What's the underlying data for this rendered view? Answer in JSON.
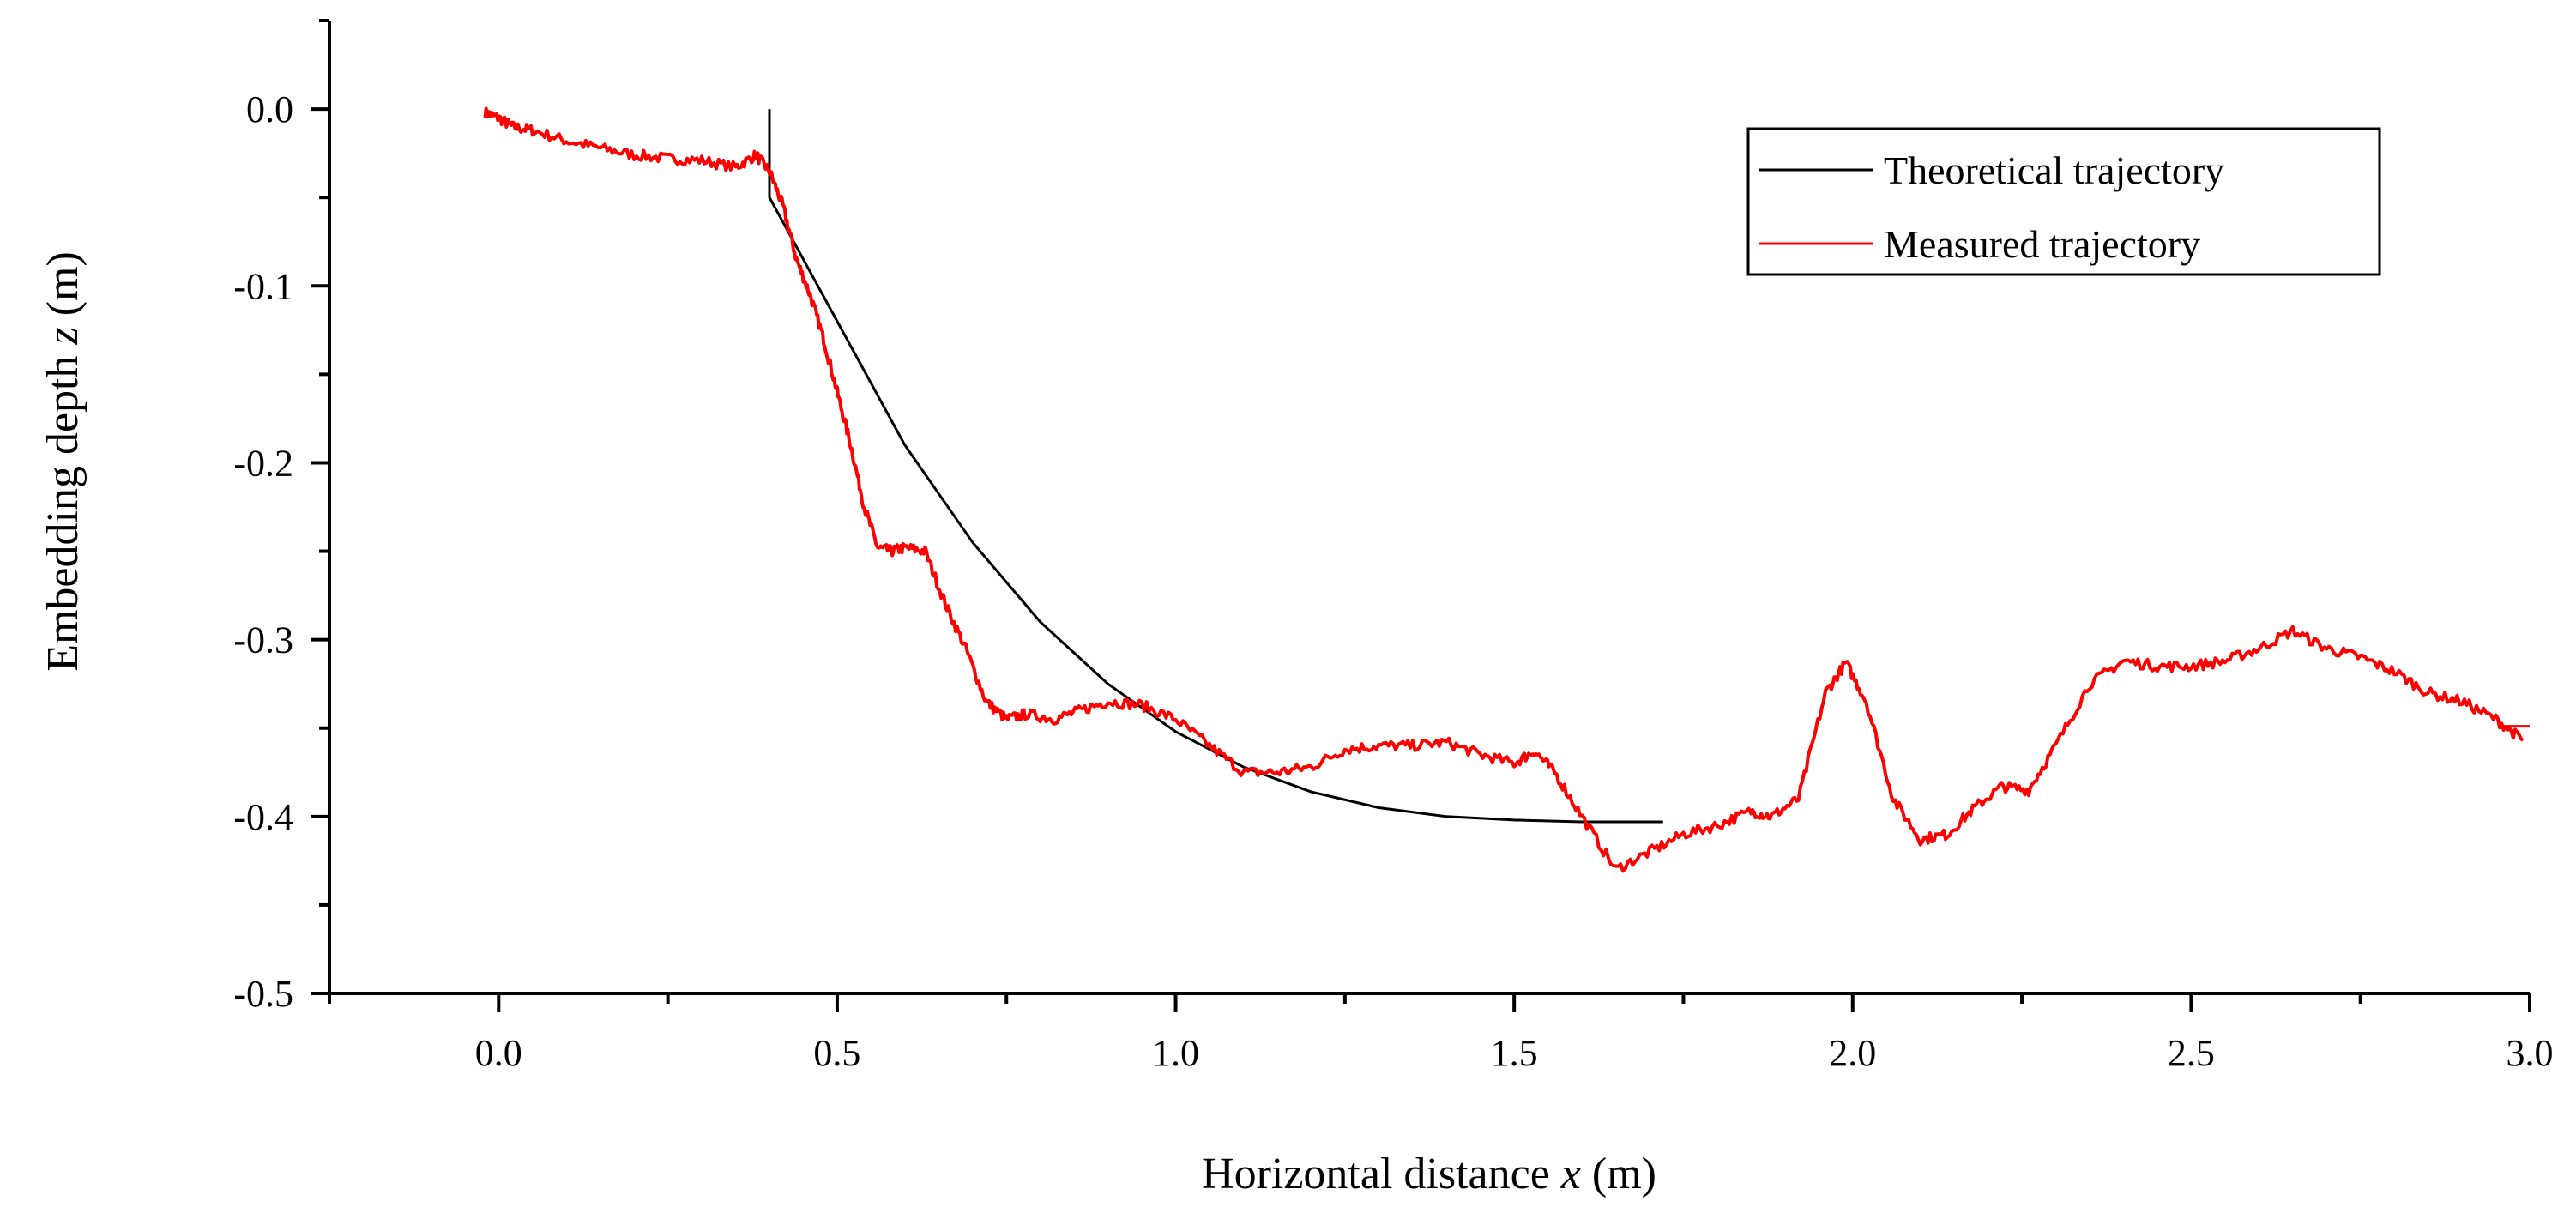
{
  "chart_data": {
    "type": "line",
    "title": "",
    "xlabel": {
      "pre": "Horizontal distance ",
      "var": "x",
      "post": " (m)"
    },
    "ylabel": {
      "pre": "Embedding depth ",
      "var": "z",
      "post": " (m)"
    },
    "xlim": [
      -0.25,
      3.0
    ],
    "ylim": [
      -0.5,
      0.05
    ],
    "xticks": [
      "0.0",
      "0.5",
      "1.0",
      "1.5",
      "2.0",
      "2.5",
      "3.0"
    ],
    "xtick_values": [
      0.0,
      0.5,
      1.0,
      1.5,
      2.0,
      2.5,
      3.0
    ],
    "yticks": [
      "0.0",
      "-0.1",
      "-0.2",
      "-0.3",
      "-0.4",
      "-0.5"
    ],
    "ytick_values": [
      0.0,
      -0.1,
      -0.2,
      -0.3,
      -0.4,
      -0.5
    ],
    "grid": false,
    "legend_position": "top-right",
    "series": [
      {
        "name": "Theoretical trajectory",
        "color": "#000000",
        "style": "smooth",
        "x": [
          0.4,
          0.4,
          0.4,
          0.45,
          0.5,
          0.6,
          0.7,
          0.8,
          0.9,
          1.0,
          1.1,
          1.2,
          1.3,
          1.4,
          1.5,
          1.6,
          1.72
        ],
        "y": [
          0.0,
          -0.03,
          -0.05,
          -0.085,
          -0.12,
          -0.19,
          -0.245,
          -0.29,
          -0.325,
          -0.352,
          -0.372,
          -0.386,
          -0.395,
          -0.4,
          -0.402,
          -0.403,
          -0.403
        ]
      },
      {
        "name": "Measured trajectory",
        "color": "#ff0000",
        "style": "noisy",
        "x": [
          -0.02,
          0.0,
          0.02,
          0.05,
          0.1,
          0.15,
          0.2,
          0.25,
          0.3,
          0.35,
          0.38,
          0.4,
          0.42,
          0.44,
          0.46,
          0.48,
          0.5,
          0.52,
          0.54,
          0.56,
          0.58,
          0.6,
          0.63,
          0.66,
          0.69,
          0.72,
          0.75,
          0.78,
          0.82,
          0.86,
          0.9,
          0.95,
          1.0,
          1.05,
          1.1,
          1.15,
          1.2,
          1.25,
          1.3,
          1.35,
          1.4,
          1.45,
          1.5,
          1.53,
          1.56,
          1.6,
          1.65,
          1.7,
          1.75,
          1.8,
          1.85,
          1.88,
          1.92,
          1.96,
          1.99,
          2.02,
          2.06,
          2.1,
          2.14,
          2.18,
          2.22,
          2.26,
          2.3,
          2.35,
          2.4,
          2.45,
          2.5,
          2.55,
          2.6,
          2.65,
          2.7,
          2.75,
          2.8,
          2.85,
          2.9,
          2.95,
          2.99
        ],
        "y": [
          -0.002,
          -0.005,
          -0.01,
          -0.012,
          -0.018,
          -0.022,
          -0.026,
          -0.028,
          -0.029,
          -0.033,
          -0.026,
          -0.035,
          -0.055,
          -0.085,
          -0.105,
          -0.13,
          -0.16,
          -0.19,
          -0.225,
          -0.248,
          -0.25,
          -0.248,
          -0.25,
          -0.28,
          -0.305,
          -0.335,
          -0.345,
          -0.342,
          -0.345,
          -0.34,
          -0.335,
          -0.337,
          -0.345,
          -0.36,
          -0.375,
          -0.375,
          -0.372,
          -0.362,
          -0.36,
          -0.36,
          -0.358,
          -0.365,
          -0.37,
          -0.363,
          -0.375,
          -0.4,
          -0.43,
          -0.42,
          -0.41,
          -0.405,
          -0.397,
          -0.4,
          -0.39,
          -0.33,
          -0.313,
          -0.335,
          -0.39,
          -0.413,
          -0.41,
          -0.395,
          -0.383,
          -0.385,
          -0.36,
          -0.325,
          -0.312,
          -0.315,
          -0.315,
          -0.312,
          -0.305,
          -0.295,
          -0.305,
          -0.31,
          -0.318,
          -0.33,
          -0.335,
          -0.345,
          -0.357
        ]
      }
    ]
  }
}
